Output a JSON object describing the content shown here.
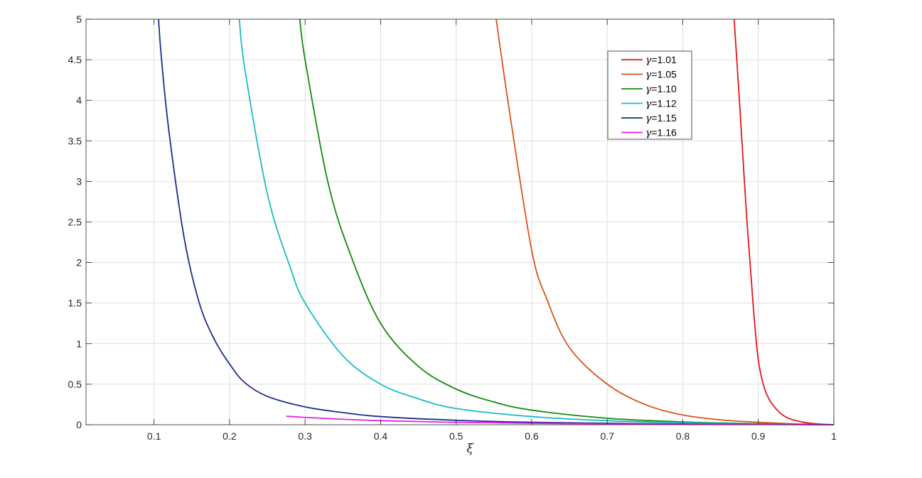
{
  "chart_data": {
    "type": "line",
    "title": "",
    "xlabel": "ξ",
    "ylabel": "",
    "xlim": [
      0.01,
      1
    ],
    "ylim": [
      0,
      5
    ],
    "xticks": [
      0.1,
      0.2,
      0.3,
      0.4,
      0.5,
      0.6,
      0.7,
      0.8,
      0.9,
      1
    ],
    "xtick_labels": [
      "0.1",
      "0.2",
      "0.3",
      "0.4",
      "0.5",
      "0.6",
      "0.7",
      "0.8",
      "0.9",
      "1"
    ],
    "yticks": [
      0,
      0.5,
      1,
      1.5,
      2,
      2.5,
      3,
      3.5,
      4,
      4.5,
      5
    ],
    "ytick_labels": [
      "0",
      "0.5",
      "1",
      "1.5",
      "2",
      "2.5",
      "3",
      "3.5",
      "4",
      "4.5",
      "5"
    ],
    "grid": true,
    "legend_position": "top-right",
    "series": [
      {
        "name": "γ=1.01",
        "legend_symbol": "γ",
        "legend_value": "=1.01",
        "color": "#e8141a",
        "points": [
          [
            0.868,
            5.0
          ],
          [
            0.875,
            4.0
          ],
          [
            0.885,
            2.5
          ],
          [
            0.893,
            1.5
          ],
          [
            0.9,
            0.8
          ],
          [
            0.91,
            0.4
          ],
          [
            0.925,
            0.18
          ],
          [
            0.94,
            0.08
          ],
          [
            0.96,
            0.03
          ],
          [
            0.98,
            0.01
          ],
          [
            1.0,
            0.0
          ]
        ]
      },
      {
        "name": "γ=1.05",
        "legend_symbol": "γ",
        "legend_value": "=1.05",
        "color": "#d95319",
        "points": [
          [
            0.553,
            5.0
          ],
          [
            0.57,
            3.9
          ],
          [
            0.6,
            2.15
          ],
          [
            0.62,
            1.55
          ],
          [
            0.65,
            0.95
          ],
          [
            0.7,
            0.5
          ],
          [
            0.75,
            0.25
          ],
          [
            0.8,
            0.12
          ],
          [
            0.85,
            0.06
          ],
          [
            0.9,
            0.03
          ],
          [
            0.95,
            0.01
          ],
          [
            1.0,
            0.0
          ]
        ]
      },
      {
        "name": "γ=1.10",
        "legend_symbol": "γ",
        "legend_value": "=1.10",
        "color": "#138a0e",
        "points": [
          [
            0.293,
            5.0
          ],
          [
            0.3,
            4.5
          ],
          [
            0.33,
            3.0
          ],
          [
            0.36,
            2.1
          ],
          [
            0.4,
            1.25
          ],
          [
            0.45,
            0.72
          ],
          [
            0.5,
            0.44
          ],
          [
            0.55,
            0.28
          ],
          [
            0.6,
            0.18
          ],
          [
            0.7,
            0.08
          ],
          [
            0.8,
            0.035
          ],
          [
            0.9,
            0.012
          ],
          [
            1.0,
            0.0
          ]
        ]
      },
      {
        "name": "γ=1.12",
        "legend_symbol": "γ",
        "legend_value": "=1.12",
        "color": "#17bcc4",
        "points": [
          [
            0.213,
            5.0
          ],
          [
            0.22,
            4.4
          ],
          [
            0.25,
            2.85
          ],
          [
            0.28,
            1.95
          ],
          [
            0.3,
            1.5
          ],
          [
            0.35,
            0.85
          ],
          [
            0.4,
            0.5
          ],
          [
            0.45,
            0.32
          ],
          [
            0.5,
            0.2
          ],
          [
            0.6,
            0.1
          ],
          [
            0.7,
            0.05
          ],
          [
            0.8,
            0.025
          ],
          [
            0.9,
            0.01
          ],
          [
            1.0,
            0.0
          ]
        ]
      },
      {
        "name": "γ=1.15",
        "legend_symbol": "γ",
        "legend_value": "=1.15",
        "color": "#1a2e8a",
        "points": [
          [
            0.106,
            5.0
          ],
          [
            0.11,
            4.5
          ],
          [
            0.12,
            3.6
          ],
          [
            0.14,
            2.3
          ],
          [
            0.16,
            1.5
          ],
          [
            0.18,
            1.05
          ],
          [
            0.2,
            0.75
          ],
          [
            0.22,
            0.52
          ],
          [
            0.25,
            0.35
          ],
          [
            0.3,
            0.22
          ],
          [
            0.35,
            0.15
          ],
          [
            0.4,
            0.1
          ],
          [
            0.5,
            0.055
          ],
          [
            0.6,
            0.03
          ],
          [
            0.7,
            0.018
          ],
          [
            0.8,
            0.01
          ],
          [
            0.9,
            0.005
          ],
          [
            1.0,
            0.0
          ]
        ]
      },
      {
        "name": "γ=1.16",
        "legend_symbol": "γ",
        "legend_value": "=1.16",
        "color": "#e61ee6",
        "points": [
          [
            0.275,
            0.105
          ],
          [
            0.3,
            0.09
          ],
          [
            0.35,
            0.068
          ],
          [
            0.4,
            0.05
          ],
          [
            0.5,
            0.03
          ],
          [
            0.6,
            0.018
          ],
          [
            0.7,
            0.01
          ],
          [
            0.8,
            0.006
          ],
          [
            0.9,
            0.003
          ],
          [
            1.0,
            0.0
          ]
        ]
      }
    ]
  }
}
